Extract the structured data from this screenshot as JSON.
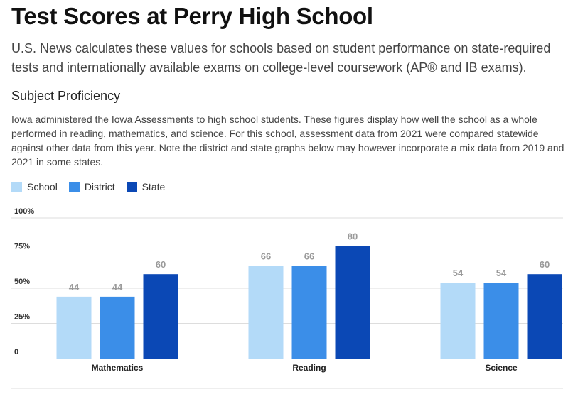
{
  "header": {
    "title": "Test Scores at Perry High School",
    "subtitle": "U.S. News calculates these values for schools based on student performance on state-required tests and internationally available exams on college-level coursework (AP® and IB exams).",
    "section_title": "Subject Proficiency",
    "description": "Iowa administered the Iowa Assessments to high school students. These figures display how well the school as a whole performed in reading, mathematics, and science. For this school, assessment data from 2021 were compared statewide against other data from this year. Note the district and state graphs below may however incorporate a mix data from 2019 and 2021 in some states."
  },
  "chart_data": {
    "type": "bar",
    "categories": [
      "Mathematics",
      "Reading",
      "Science"
    ],
    "series": [
      {
        "name": "School",
        "color": "#b3daf8",
        "values": [
          44,
          66,
          54
        ]
      },
      {
        "name": "District",
        "color": "#3b8ee8",
        "values": [
          44,
          66,
          54
        ]
      },
      {
        "name": "State",
        "color": "#0b48b5",
        "values": [
          60,
          80,
          60
        ]
      }
    ],
    "ylim": [
      0,
      100
    ],
    "yticks": [
      {
        "value": 0,
        "label": "0"
      },
      {
        "value": 25,
        "label": "25%"
      },
      {
        "value": 50,
        "label": "50%"
      },
      {
        "value": 75,
        "label": "75%"
      },
      {
        "value": 100,
        "label": "100%"
      }
    ],
    "grid": true,
    "legend": "top-left"
  }
}
